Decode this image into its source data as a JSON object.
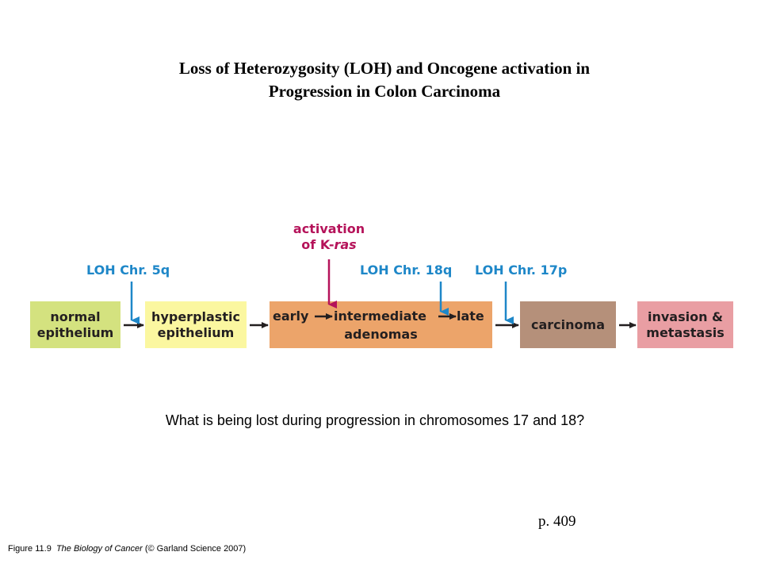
{
  "title": {
    "line1": "Loss of Heterozygosity (LOH) and Oncogene activation in",
    "line2": "Progression in Colon Carcinoma"
  },
  "diagram": {
    "stages": [
      {
        "line1": "normal",
        "line2": "epithelium",
        "color": "#d4e27f"
      },
      {
        "line1": "hyperplastic",
        "line2": "epithelium",
        "color": "#fbf7a0"
      },
      {
        "early": "early",
        "intermediate": "intermediate",
        "late": "late",
        "line2": "adenomas",
        "color": "#eca46a"
      },
      {
        "line1": "carcinoma",
        "color": "#b5907a"
      },
      {
        "line1": "invasion &",
        "line2": "metastasis",
        "color": "#e99ea3"
      }
    ],
    "events": [
      {
        "label": "LOH Chr. 5q",
        "color": "#1e87c8"
      },
      {
        "label_line1": "activation",
        "label_line2_prefix": "of K-",
        "label_line2_italic": "ras",
        "color": "#b5135a"
      },
      {
        "label": "LOH Chr. 18q",
        "color": "#1e87c8"
      },
      {
        "label": "LOH Chr. 17p",
        "color": "#1e87c8"
      }
    ]
  },
  "question": "What is being lost during progression in chromosomes 17 and 18?",
  "page_ref": "p. 409",
  "caption": {
    "figure": "Figure 11.9",
    "book": "The Biology of Cancer",
    "credit": "(© Garland Science 2007)"
  }
}
